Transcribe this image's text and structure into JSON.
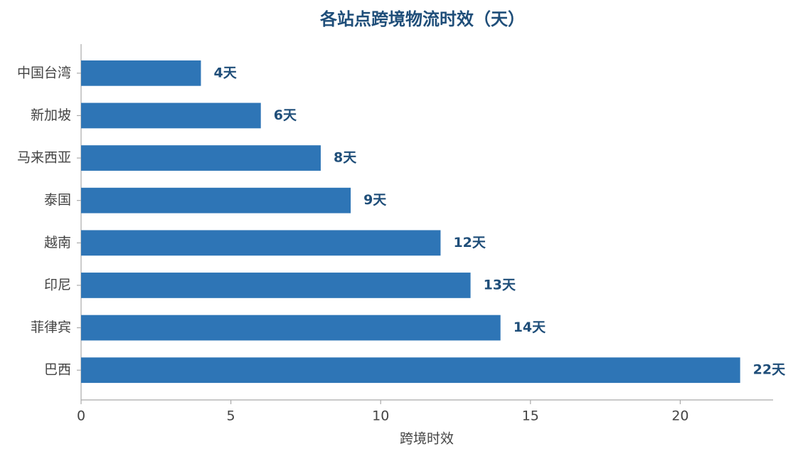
{
  "chart_data": {
    "type": "bar",
    "orientation": "horizontal",
    "title": "各站点跨境物流时效（天）",
    "x_label": "跨境时效",
    "categories": [
      "中国台湾",
      "新加坡",
      "马来西亚",
      "泰国",
      "越南",
      "印尼",
      "菲律宾",
      "巴西"
    ],
    "values": [
      4,
      6,
      8,
      9,
      12,
      13,
      14,
      22
    ],
    "value_labels": [
      "4天",
      "6天",
      "8天",
      "9天",
      "12天",
      "13天",
      "14天",
      "22天"
    ],
    "color": "#2e75b6",
    "xlim": [
      0,
      23.1
    ],
    "xticks": [
      0,
      5,
      10,
      15,
      20
    ],
    "grid": false
  }
}
